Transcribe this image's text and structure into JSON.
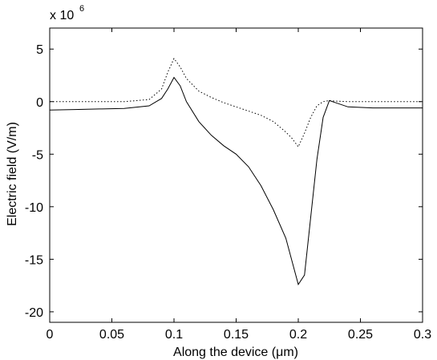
{
  "chart_data": {
    "type": "line",
    "xlabel": "Along the device (μm)",
    "ylabel": "Electric field (V/m)",
    "multiplier": {
      "base": "x 10",
      "exponent": "6"
    },
    "x": [
      0,
      0.02,
      0.04,
      0.06,
      0.08,
      0.09,
      0.095,
      0.1,
      0.105,
      0.11,
      0.12,
      0.13,
      0.14,
      0.15,
      0.16,
      0.17,
      0.18,
      0.19,
      0.195,
      0.2,
      0.205,
      0.21,
      0.215,
      0.22,
      0.225,
      0.23,
      0.24,
      0.26,
      0.28,
      0.3
    ],
    "series": [
      {
        "color": "#000000",
        "line_style": "solid",
        "values": [
          -0.8,
          -0.75,
          -0.7,
          -0.65,
          -0.4,
          0.3,
          1.2,
          2.3,
          1.5,
          0,
          -1.9,
          -3.2,
          -4.2,
          -5.0,
          -6.2,
          -8.0,
          -10.3,
          -13.0,
          -15.2,
          -17.4,
          -16.5,
          -11,
          -5.5,
          -1.5,
          0.1,
          -0.1,
          -0.5,
          -0.6,
          -0.6,
          -0.6
        ]
      },
      {
        "color": "#000000",
        "line_style": "dotted",
        "values": [
          0,
          0,
          0,
          0,
          0.2,
          1.2,
          2.8,
          4.1,
          3.3,
          2.2,
          1.0,
          0.4,
          -0.1,
          -0.5,
          -0.9,
          -1.3,
          -1.9,
          -2.9,
          -3.5,
          -4.3,
          -3.0,
          -1.5,
          -0.4,
          0,
          0.1,
          0.05,
          0,
          0,
          0,
          0
        ]
      }
    ],
    "xlim": [
      0,
      0.3
    ],
    "xticks": [
      0,
      0.05,
      0.1,
      0.15,
      0.2,
      0.25,
      0.3
    ],
    "ylim": [
      -21,
      7
    ],
    "yticks": [
      -20,
      -15,
      -10,
      -5,
      0,
      5
    ],
    "grid": false
  }
}
